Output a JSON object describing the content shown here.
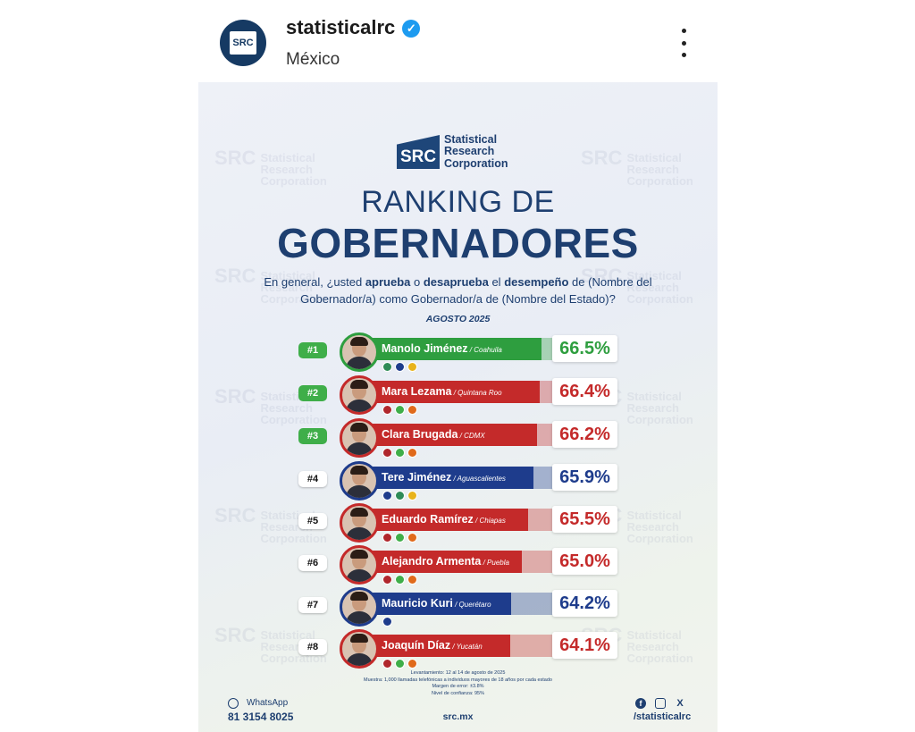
{
  "post": {
    "username": "statisticalrc",
    "location": "México",
    "avatar_text": "SRC"
  },
  "card": {
    "logo_mark": "SRC",
    "logo_line1": "Statistical",
    "logo_line2": "Research",
    "logo_line3": "Corporation",
    "title_line1": "RANKING DE",
    "title_line2": "GOBERNADORES",
    "question_p1": "En general, ¿usted ",
    "question_b1": "aprueba",
    "question_p2": " o ",
    "question_b2": "desaprueba",
    "question_p3": " el ",
    "question_b3": "desempeño",
    "question_p4": " de (Nombre del Gobernador/a) como Gobernador/a de (Nombre del Estado)?",
    "date": "AGOSTO 2025",
    "notes": [
      "Levantamiento: 12 al 14 de agosto de 2025",
      "Muestra: 1,000 llamadas telefónicas a individuos mayores de 18 años por cada estado",
      "Margen de error: ±3.8%",
      "Nivel de confianza: 95%"
    ],
    "whatsapp_label": "WhatsApp",
    "whatsapp_number": "81 3154 8025",
    "site": "src.mx",
    "handle": "/statisticalrc",
    "x_icon": "X"
  },
  "colors": {
    "green": "#2e9e3f",
    "red": "#c42a2a",
    "blue": "#1e3c8c",
    "navy": "#1e3f70"
  },
  "ranking": [
    {
      "rank": "#1",
      "name": "Manolo Jiménez",
      "state": " / Coahuila",
      "pct": "66.5%",
      "value": 66.5,
      "color": "green",
      "top": true,
      "parties": [
        "#2e8b57",
        "#1e3c8c",
        "#e8b31a"
      ]
    },
    {
      "rank": "#2",
      "name": "Mara Lezama",
      "state": " / Quintana Roo",
      "pct": "66.4%",
      "value": 66.4,
      "color": "red",
      "top": true,
      "parties": [
        "#b0262c",
        "#3fae49",
        "#e06a1b"
      ]
    },
    {
      "rank": "#3",
      "name": "Clara Brugada",
      "state": " / CDMX",
      "pct": "66.2%",
      "value": 66.2,
      "color": "red",
      "top": true,
      "parties": [
        "#b0262c",
        "#3fae49",
        "#e06a1b"
      ]
    },
    {
      "rank": "#4",
      "name": "Tere Jiménez",
      "state": " / Aguascalientes",
      "pct": "65.9%",
      "value": 65.9,
      "color": "blue",
      "top": false,
      "parties": [
        "#1e3c8c",
        "#2e8b57",
        "#e8b31a"
      ]
    },
    {
      "rank": "#5",
      "name": "Eduardo Ramírez",
      "state": " / Chiapas",
      "pct": "65.5%",
      "value": 65.5,
      "color": "red",
      "top": false,
      "parties": [
        "#b0262c",
        "#3fae49",
        "#e06a1b"
      ]
    },
    {
      "rank": "#6",
      "name": "Alejandro Armenta",
      "state": " / Puebla",
      "pct": "65.0%",
      "value": 65.0,
      "color": "red",
      "top": false,
      "parties": [
        "#b0262c",
        "#3fae49",
        "#e06a1b"
      ]
    },
    {
      "rank": "#7",
      "name": "Mauricio Kuri",
      "state": " / Querétaro",
      "pct": "64.2%",
      "value": 64.2,
      "color": "blue",
      "top": false,
      "parties": [
        "#1e3c8c"
      ]
    },
    {
      "rank": "#8",
      "name": "Joaquín Díaz",
      "state": " / Yucatán",
      "pct": "64.1%",
      "value": 64.1,
      "color": "red",
      "top": false,
      "parties": [
        "#b0262c",
        "#3fae49",
        "#e06a1b"
      ]
    }
  ]
}
